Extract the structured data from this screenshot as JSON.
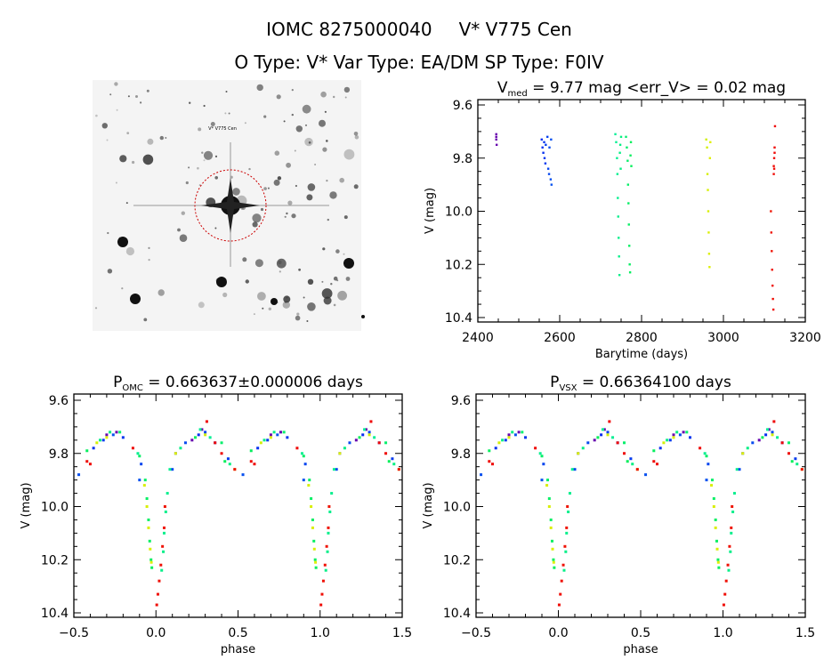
{
  "header": {
    "line1_id": "IOMC 8275000040",
    "line1_name": "V* V775 Cen",
    "line2": "O Type: V*  Var Type: EA/DM  SP Type: F0IV"
  },
  "image_panel": {
    "target_label": "V* V775 Cen",
    "circle_color": "#cc0000"
  },
  "colors": {
    "scale": "rainbow by Barytime (purple early → red late)"
  },
  "chart_data": [
    {
      "id": "time_series",
      "type": "scatter",
      "title_main": "V",
      "title_sub": "med",
      "title_rest": " = 9.77 mag <err_V> = 0.02 mag",
      "xlabel": "Barytime (days)",
      "ylabel": "V (mag)",
      "xlim": [
        2400,
        3200
      ],
      "ylim": [
        10.41,
        9.59
      ],
      "yaxis_inverted": true,
      "xticks": [
        "2400",
        "2600",
        "2800",
        "3000",
        "3200"
      ],
      "yticks": [
        "9.6",
        "9.8",
        "10.0",
        "10.2",
        "10.4"
      ]
    },
    {
      "id": "phase_omc",
      "type": "scatter",
      "title_main": "P",
      "title_sub": "OMC",
      "title_rest": " = 0.663637±0.000006 days",
      "xlabel": "phase",
      "ylabel": "V (mag)",
      "xlim": [
        -0.5,
        1.5
      ],
      "ylim": [
        10.41,
        9.59
      ],
      "yaxis_inverted": true,
      "xticks": [
        "−0.5",
        "0.0",
        "0.5",
        "1.0",
        "1.5"
      ],
      "yticks": [
        "9.6",
        "9.8",
        "10.0",
        "10.2",
        "10.4"
      ]
    },
    {
      "id": "phase_vsx",
      "type": "scatter",
      "title_main": "P",
      "title_sub": "VSX",
      "title_rest": " = 0.66364100 days",
      "xlabel": "phase",
      "ylabel": "V (mag)",
      "xlim": [
        -0.5,
        1.5
      ],
      "ylim": [
        10.41,
        9.59
      ],
      "yaxis_inverted": true,
      "xticks": [
        "−0.5",
        "0.0",
        "0.5",
        "1.0",
        "1.5"
      ],
      "yticks": [
        "9.6",
        "9.8",
        "10.0",
        "10.2",
        "10.4"
      ]
    }
  ],
  "observations_columns": [
    "barytime",
    "V",
    "phase"
  ],
  "observations": [
    [
      2445,
      9.71,
      0.28
    ],
    [
      2445,
      9.73,
      0.7
    ],
    [
      2446,
      9.75,
      0.22
    ],
    [
      2445,
      9.72,
      0.76
    ],
    [
      2556,
      9.73,
      0.26
    ],
    [
      2558,
      9.76,
      0.36
    ],
    [
      2560,
      9.78,
      0.62
    ],
    [
      2562,
      9.74,
      0.8
    ],
    [
      2563,
      9.8,
      0.12
    ],
    [
      2565,
      9.82,
      0.44
    ],
    [
      2566,
      9.75,
      0.68
    ],
    [
      2570,
      9.72,
      0.3
    ],
    [
      2572,
      9.84,
      0.91
    ],
    [
      2574,
      9.86,
      0.1
    ],
    [
      2575,
      9.76,
      0.18
    ],
    [
      2578,
      9.88,
      0.53
    ],
    [
      2580,
      9.9,
      0.9
    ],
    [
      2579,
      9.73,
      0.74
    ],
    [
      2736,
      9.71,
      0.27
    ],
    [
      2738,
      9.74,
      0.33
    ],
    [
      2740,
      9.8,
      0.89
    ],
    [
      2741,
      9.86,
      0.085
    ],
    [
      2742,
      9.95,
      0.07
    ],
    [
      2743,
      10.02,
      0.06
    ],
    [
      2744,
      10.1,
      0.05
    ],
    [
      2745,
      10.17,
      0.045
    ],
    [
      2746,
      10.24,
      0.035
    ],
    [
      2747,
      9.78,
      0.15
    ],
    [
      2748,
      9.75,
      0.66
    ],
    [
      2749,
      9.84,
      0.45
    ],
    [
      2750,
      9.72,
      0.72
    ],
    [
      2762,
      9.72,
      0.78
    ],
    [
      2764,
      9.76,
      0.4
    ],
    [
      2766,
      9.81,
      0.9
    ],
    [
      2767,
      9.9,
      0.935
    ],
    [
      2768,
      9.97,
      0.945
    ],
    [
      2769,
      10.05,
      0.955
    ],
    [
      2770,
      10.13,
      0.962
    ],
    [
      2771,
      10.2,
      0.97
    ],
    [
      2772,
      10.23,
      0.975
    ],
    [
      2773,
      9.79,
      0.58
    ],
    [
      2774,
      9.74,
      0.24
    ],
    [
      2775,
      9.83,
      0.42
    ],
    [
      2958,
      9.73,
      0.3
    ],
    [
      2960,
      9.76,
      0.64
    ],
    [
      2961,
      9.86,
      0.48
    ],
    [
      2962,
      9.92,
      0.93
    ],
    [
      2963,
      10.0,
      0.945
    ],
    [
      2964,
      10.08,
      0.955
    ],
    [
      2965,
      10.16,
      0.965
    ],
    [
      2966,
      10.21,
      0.972
    ],
    [
      2967,
      9.8,
      0.12
    ],
    [
      2968,
      9.74,
      0.7
    ],
    [
      3116,
      10.0,
      0.055
    ],
    [
      3117,
      10.08,
      0.05
    ],
    [
      3118,
      10.15,
      0.04
    ],
    [
      3119,
      10.22,
      0.03
    ],
    [
      3120,
      10.28,
      0.02
    ],
    [
      3121,
      10.33,
      0.012
    ],
    [
      3122,
      10.37,
      0.005
    ],
    [
      3123,
      9.83,
      0.58
    ],
    [
      3123,
      9.86,
      0.48
    ],
    [
      3124,
      9.8,
      0.4
    ],
    [
      3125,
      9.76,
      0.36
    ],
    [
      3126,
      9.68,
      0.31
    ],
    [
      3124,
      9.84,
      0.6
    ],
    [
      3125,
      9.78,
      0.86
    ]
  ]
}
